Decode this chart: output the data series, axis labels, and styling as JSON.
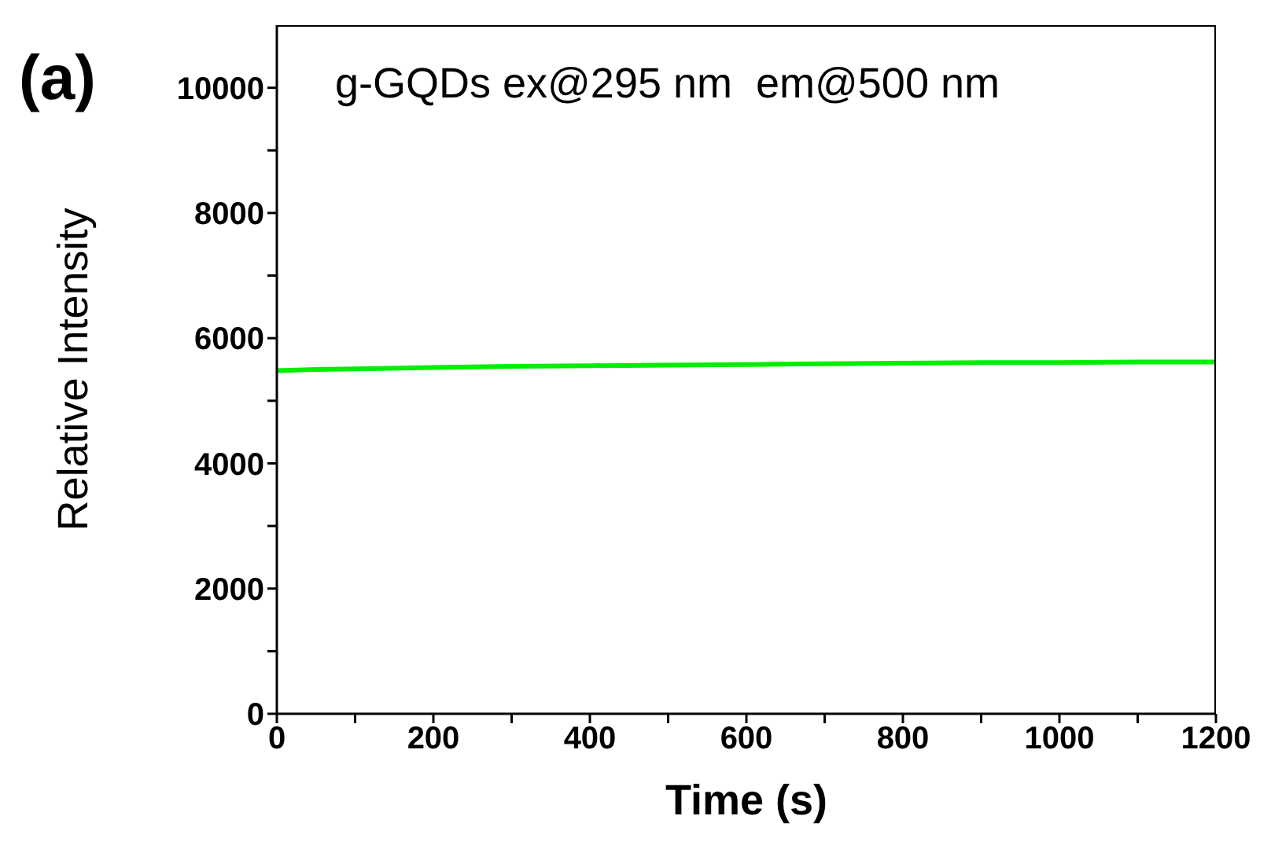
{
  "chart_data": {
    "type": "line",
    "xlabel": "Time (s)",
    "ylabel": "Relative Intensity",
    "annotations": [
      "(a)",
      "g-GQDs ex@295 nm  em@500 nm"
    ],
    "x": [
      0,
      50,
      100,
      200,
      300,
      400,
      500,
      600,
      700,
      800,
      900,
      1000,
      1100,
      1200
    ],
    "series": [
      {
        "color": "#00ee00",
        "values": [
          5480,
          5500,
          5510,
          5530,
          5550,
          5560,
          5570,
          5580,
          5590,
          5600,
          5610,
          5610,
          5620,
          5620
        ]
      }
    ],
    "xlim": [
      0,
      1200
    ],
    "ylim": [
      0,
      11000
    ],
    "xticks": [
      0,
      {
        "value": 100,
        "label": null
      },
      200,
      {
        "value": 300,
        "label": null
      },
      400,
      {
        "value": 500,
        "label": null
      },
      600,
      {
        "value": 700,
        "label": null
      },
      800,
      {
        "value": 900,
        "label": null
      },
      1000,
      {
        "value": 1100,
        "label": null
      },
      1200
    ],
    "yticks": [
      0,
      {
        "value": 1000,
        "label": null
      },
      2000,
      {
        "value": 3000,
        "label": null
      },
      4000,
      {
        "value": 5000,
        "label": null
      },
      6000,
      {
        "value": 7000,
        "label": null
      },
      8000,
      {
        "value": 9000,
        "label": null
      },
      10000
    ],
    "grid": false,
    "legend": false,
    "marker": "none",
    "line_style": "solid"
  }
}
